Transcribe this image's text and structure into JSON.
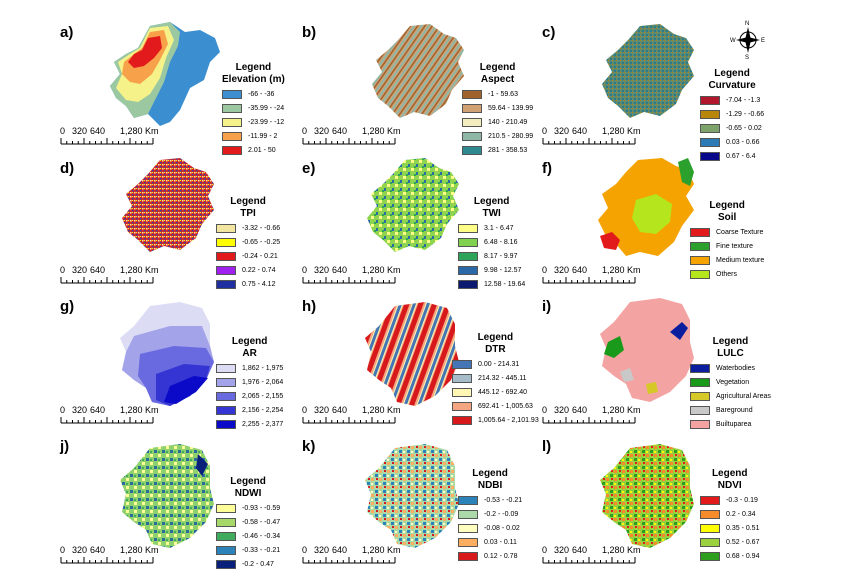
{
  "scale": {
    "ticks": [
      "0",
      "320",
      "640",
      "1,280 Km"
    ]
  },
  "north_arrow": {
    "n": "N",
    "s": "S",
    "e": "E",
    "w": "W"
  },
  "panels": [
    {
      "id": "a",
      "label": "a)",
      "legend_heading": "Legend",
      "legend_title": "Elevation (m)",
      "classes": [
        {
          "label": "-66 - -36",
          "color": "#3b8fd0"
        },
        {
          "label": "-35.99 - -24",
          "color": "#9bc8a0"
        },
        {
          "label": "-23.99 - -12",
          "color": "#f6f28a"
        },
        {
          "label": "-11.99 - 2",
          "color": "#f7a14a"
        },
        {
          "label": "2.01 - 50",
          "color": "#e31a1c"
        }
      ]
    },
    {
      "id": "b",
      "label": "b)",
      "legend_heading": "Legend",
      "legend_title": "Aspect",
      "classes": [
        {
          "label": "-1 - 59.63",
          "color": "#a0622d"
        },
        {
          "label": "59.64 - 139.99",
          "color": "#cfa173"
        },
        {
          "label": "140 - 210.49",
          "color": "#f3edc0"
        },
        {
          "label": "210.5 - 280.99",
          "color": "#8fb7a8"
        },
        {
          "label": "281 - 358.53",
          "color": "#2f8a8f"
        }
      ]
    },
    {
      "id": "c",
      "label": "c)",
      "legend_heading": "Legend",
      "legend_title": "Curvature",
      "classes": [
        {
          "label": "-7.04 - -1.3",
          "color": "#b2182b"
        },
        {
          "label": "-1.29 - -0.66",
          "color": "#b8860b"
        },
        {
          "label": "-0.65 - 0.02",
          "color": "#7fa46b"
        },
        {
          "label": "0.03 - 0.66",
          "color": "#2c7bb6"
        },
        {
          "label": "0.67 - 6.4",
          "color": "#08088a"
        }
      ]
    },
    {
      "id": "d",
      "label": "d)",
      "legend_heading": "Legend",
      "legend_title": "TPI",
      "classes": [
        {
          "label": "-3.32 - -0.66",
          "color": "#f3e6a0"
        },
        {
          "label": "-0.65 - -0.25",
          "color": "#ffff00"
        },
        {
          "label": "-0.24 - 0.21",
          "color": "#e31a1c"
        },
        {
          "label": "0.22 - 0.74",
          "color": "#a020f0"
        },
        {
          "label": "0.75 - 4.12",
          "color": "#1f2f9f"
        }
      ]
    },
    {
      "id": "e",
      "label": "e)",
      "legend_heading": "Legend",
      "legend_title": "TWI",
      "classes": [
        {
          "label": "3.1 - 6.47",
          "color": "#ffff88"
        },
        {
          "label": "6.48 - 8.16",
          "color": "#7fd14f"
        },
        {
          "label": "8.17 - 9.97",
          "color": "#2ea35a"
        },
        {
          "label": "9.98 - 12.57",
          "color": "#2a68a8"
        },
        {
          "label": "12.58 - 19.64",
          "color": "#0b1a6e"
        }
      ]
    },
    {
      "id": "f",
      "label": "f)",
      "legend_heading": "Legend",
      "legend_title": "Soil",
      "classes": [
        {
          "label": "Coarse Texture",
          "color": "#e31a1c"
        },
        {
          "label": "Fine texture",
          "color": "#2ca02c"
        },
        {
          "label": "Medium texture",
          "color": "#f5a300"
        },
        {
          "label": "Others",
          "color": "#b5e61d"
        }
      ]
    },
    {
      "id": "g",
      "label": "g)",
      "legend_heading": "Legend",
      "legend_title": "AR",
      "classes": [
        {
          "label": "1,862 - 1,975",
          "color": "#dcdcf5"
        },
        {
          "label": "1,976 - 2,064",
          "color": "#a3a3ea"
        },
        {
          "label": "2,065 - 2,155",
          "color": "#6a6ae0"
        },
        {
          "label": "2,156 - 2,254",
          "color": "#3535d4"
        },
        {
          "label": "2,255 - 2,377",
          "color": "#0a0ac8"
        }
      ]
    },
    {
      "id": "h",
      "label": "h)",
      "legend_heading": "Legend",
      "legend_title": "DTR",
      "classes": [
        {
          "label": "0.00 - 214.31",
          "color": "#4575b4"
        },
        {
          "label": "214.32 - 445.11",
          "color": "#a7bcc9"
        },
        {
          "label": "445.12 - 692.40",
          "color": "#fff7b3"
        },
        {
          "label": "692.41 - 1,005.63",
          "color": "#f4a582"
        },
        {
          "label": "1,005.64 - 2,101.93",
          "color": "#d7191c"
        }
      ]
    },
    {
      "id": "i",
      "label": "i)",
      "legend_heading": "Legend",
      "legend_title": "LULC",
      "classes": [
        {
          "label": "Waterbodies",
          "color": "#0b1e9e"
        },
        {
          "label": "Vegetation",
          "color": "#1a9a1a"
        },
        {
          "label": "Agricultural Areas",
          "color": "#d6c827"
        },
        {
          "label": "Bareground",
          "color": "#c8c8c8"
        },
        {
          "label": "Builtuparea",
          "color": "#f4a3a3"
        }
      ]
    },
    {
      "id": "j",
      "label": "j)",
      "legend_heading": "Legend",
      "legend_title": "NDWI",
      "classes": [
        {
          "label": "-0.93 - -0.59",
          "color": "#ffff99"
        },
        {
          "label": "-0.58 - -0.47",
          "color": "#a6d96a"
        },
        {
          "label": "-0.46 - -0.34",
          "color": "#41ab5d"
        },
        {
          "label": "-0.33 - -0.21",
          "color": "#2b83ba"
        },
        {
          "label": "-0.2 - 0.47",
          "color": "#08207a"
        }
      ]
    },
    {
      "id": "k",
      "label": "k)",
      "legend_heading": "Legend",
      "legend_title": "NDBI",
      "classes": [
        {
          "label": "-0.53 - -0.21",
          "color": "#2b83ba"
        },
        {
          "label": "-0.2 - -0.09",
          "color": "#abd9a9"
        },
        {
          "label": "-0.08 - 0.02",
          "color": "#ffffbf"
        },
        {
          "label": "0.03 - 0.11",
          "color": "#fdae61"
        },
        {
          "label": "0.12 - 0.78",
          "color": "#d7191c"
        }
      ]
    },
    {
      "id": "l",
      "label": "l)",
      "legend_heading": "Legend",
      "legend_title": "NDVI",
      "classes": [
        {
          "label": "-0.3 - 0.19",
          "color": "#e31a1c"
        },
        {
          "label": "0.2 - 0.34",
          "color": "#f58b2a"
        },
        {
          "label": "0.35 - 0.51",
          "color": "#ffff00"
        },
        {
          "label": "0.52 - 0.67",
          "color": "#9bd13f"
        },
        {
          "label": "0.68 - 0.94",
          "color": "#2e9e1e"
        }
      ]
    }
  ]
}
